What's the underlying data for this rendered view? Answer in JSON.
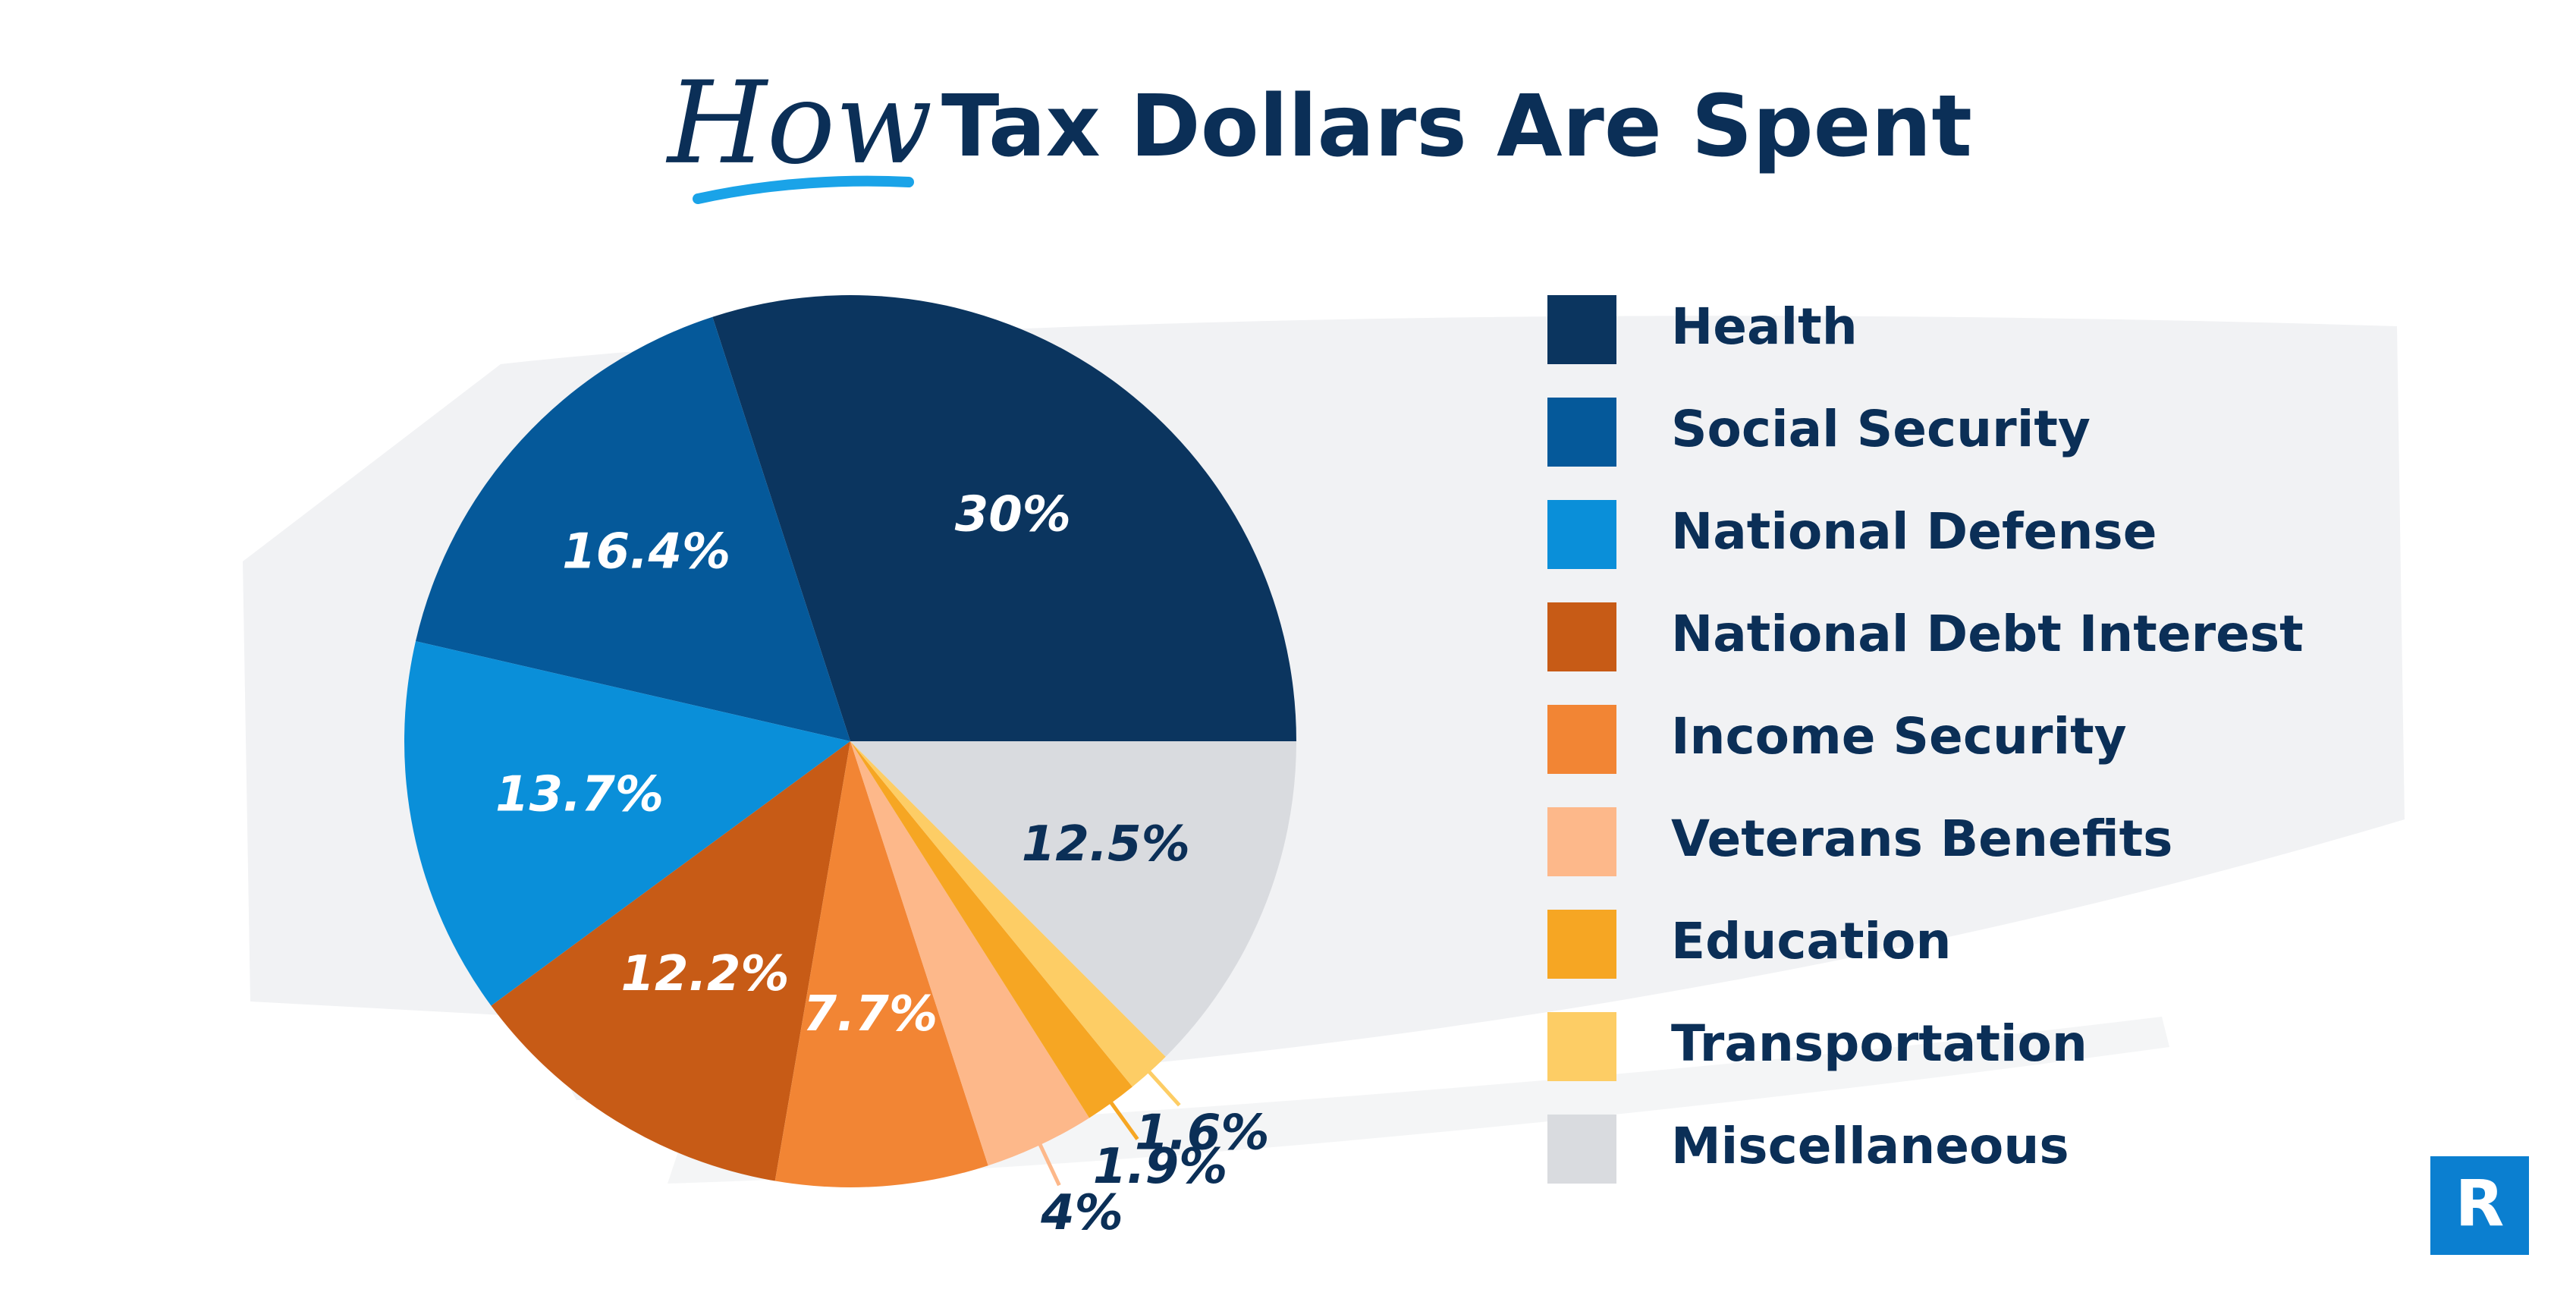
{
  "chart_data": {
    "type": "pie",
    "title_prefix": "How",
    "title": "Tax Dollars Are Spent",
    "categories": [
      "Health",
      "Social Security",
      "National Defense",
      "National Debt Interest",
      "Income Security",
      "Veterans Benefits",
      "Education",
      "Transportation",
      "Miscellaneous"
    ],
    "values": [
      30,
      16.4,
      13.7,
      12.2,
      7.7,
      4,
      1.9,
      1.6,
      12.5
    ],
    "value_labels": [
      "30%",
      "16.4%",
      "13.7%",
      "12.2%",
      "7.7%",
      "4%",
      "1.9%",
      "1.6%",
      "12.5%"
    ],
    "colors": [
      "#0b355f",
      "#05599a",
      "#0a8fd9",
      "#c75b16",
      "#f28534",
      "#fdb88a",
      "#f6a623",
      "#fdcd65",
      "#d9dbdf"
    ],
    "legend": "right",
    "logo": "R"
  }
}
